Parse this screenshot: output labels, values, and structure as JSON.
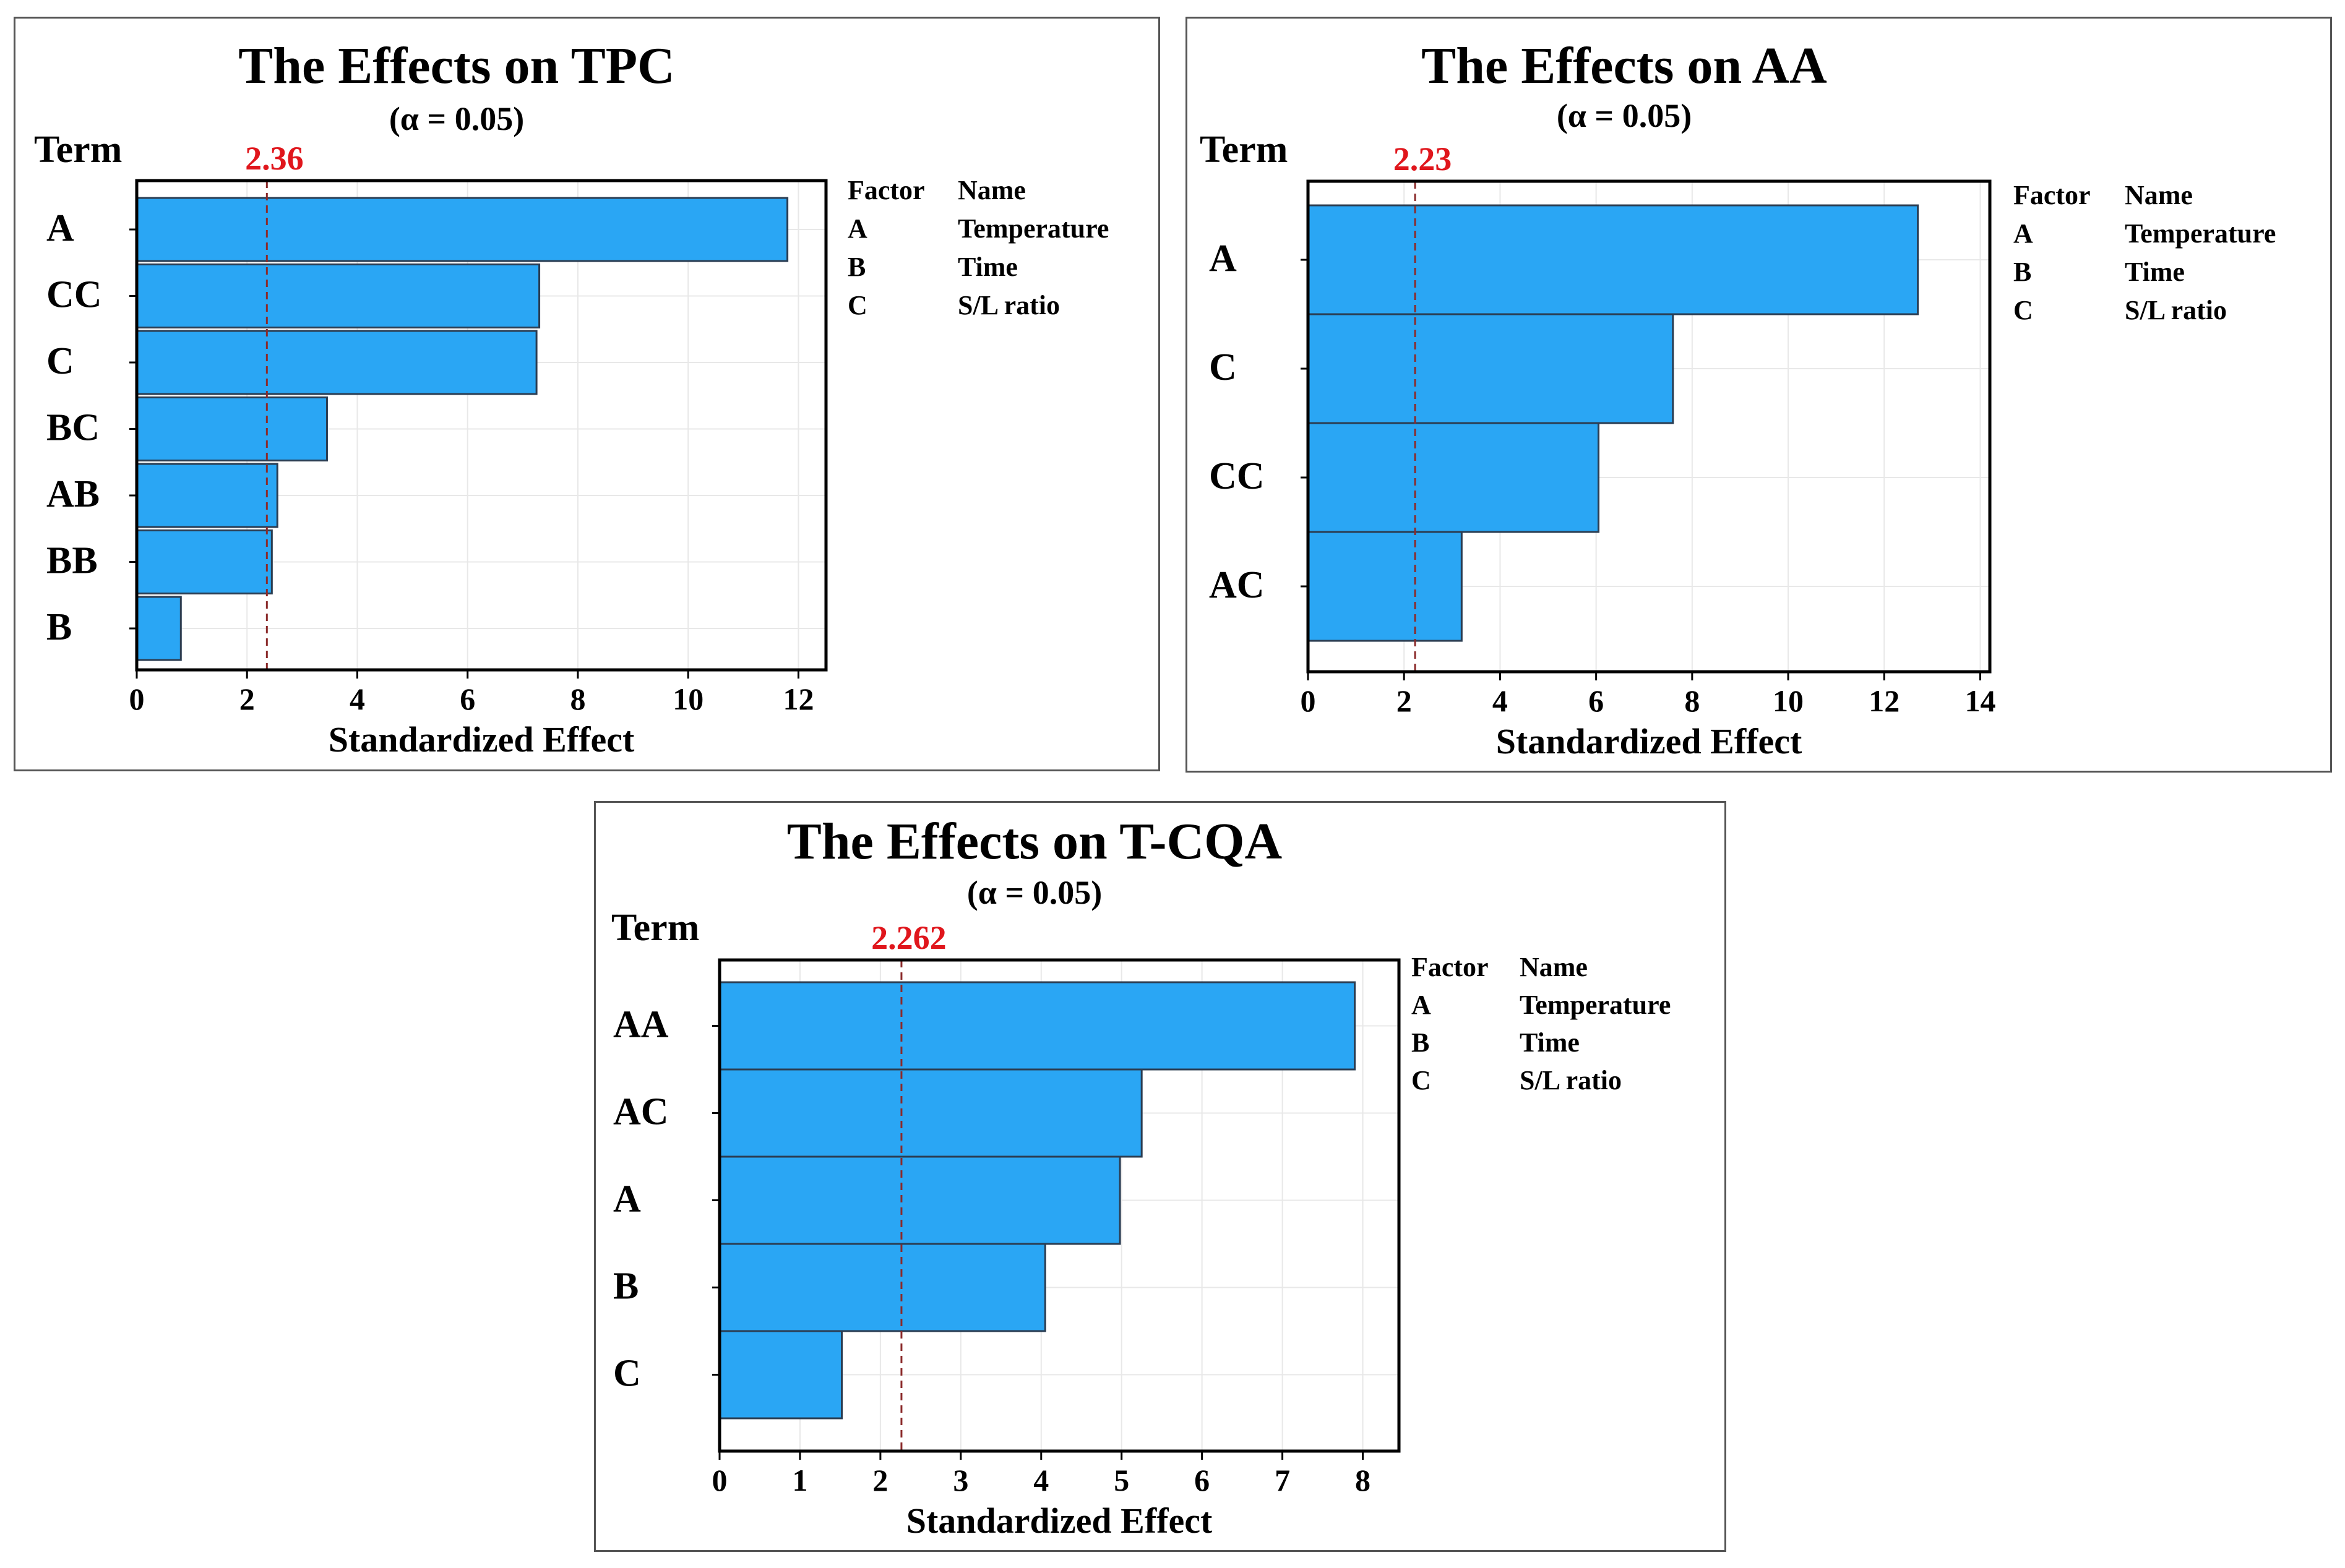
{
  "chart_data": [
    {
      "type": "bar",
      "orientation": "horizontal",
      "title": "The Effects on TPC",
      "subtitle": "(α = 0.05)",
      "ylabel": "Term",
      "xlabel": "Standardized Effect",
      "categories": [
        "A",
        "CC",
        "C",
        "BC",
        "AB",
        "BB",
        "B"
      ],
      "values": [
        11.8,
        7.3,
        7.25,
        3.45,
        2.55,
        2.45,
        0.8
      ],
      "xlim": [
        0,
        12.5
      ],
      "xticks": [
        0,
        2,
        4,
        6,
        8,
        10,
        12
      ],
      "reference_line": {
        "value": 2.36,
        "label": "2.36"
      },
      "grid": true,
      "legend": {
        "position": "right",
        "headers": [
          "Factor",
          "Name"
        ],
        "rows": [
          [
            "A",
            "Temperature"
          ],
          [
            "B",
            "Time"
          ],
          [
            "C",
            "S/L ratio"
          ]
        ]
      }
    },
    {
      "type": "bar",
      "orientation": "horizontal",
      "title": "The Effects on AA",
      "subtitle": "(α = 0.05)",
      "ylabel": "Term",
      "xlabel": "Standardized Effect",
      "categories": [
        "A",
        "C",
        "CC",
        "AC"
      ],
      "values": [
        12.7,
        7.6,
        6.05,
        3.2
      ],
      "xlim": [
        0,
        14.2
      ],
      "xticks": [
        0,
        2,
        4,
        6,
        8,
        10,
        12,
        14
      ],
      "reference_line": {
        "value": 2.23,
        "label": "2.23"
      },
      "grid": true,
      "legend": {
        "position": "right",
        "headers": [
          "Factor",
          "Name"
        ],
        "rows": [
          [
            "A",
            "Temperature"
          ],
          [
            "B",
            "Time"
          ],
          [
            "C",
            "S/L ratio"
          ]
        ]
      }
    },
    {
      "type": "bar",
      "orientation": "horizontal",
      "title": "The Effects on T-CQA",
      "subtitle": "(α = 0.05)",
      "ylabel": "Term",
      "xlabel": "Standardized Effect",
      "categories": [
        "AA",
        "AC",
        "A",
        "B",
        "C"
      ],
      "values": [
        7.9,
        5.25,
        4.98,
        4.05,
        1.52
      ],
      "xlim": [
        0,
        8.45
      ],
      "xticks": [
        0,
        1,
        2,
        3,
        4,
        5,
        6,
        7,
        8
      ],
      "reference_line": {
        "value": 2.262,
        "label": "2.262"
      },
      "grid": true,
      "legend": {
        "position": "right",
        "headers": [
          "Factor",
          "Name"
        ],
        "rows": [
          [
            "A",
            "Temperature"
          ],
          [
            "B",
            "Time"
          ],
          [
            "C",
            "S/L ratio"
          ]
        ]
      }
    }
  ]
}
